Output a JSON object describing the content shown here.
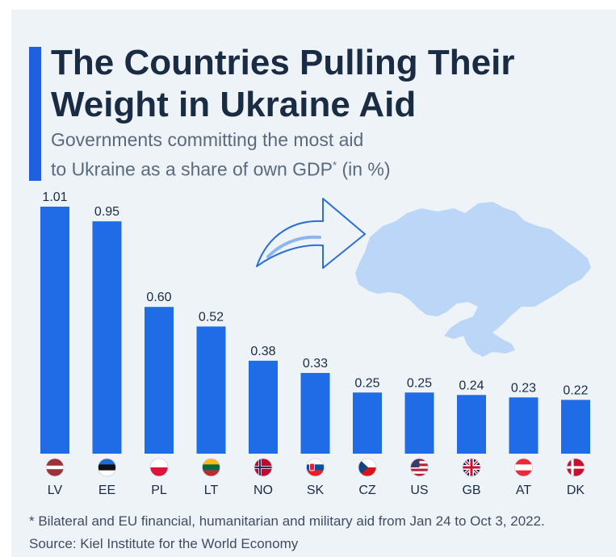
{
  "header": {
    "title_line1": "The Countries Pulling Their",
    "title_line2": "Weight in Ukraine Aid",
    "subtitle_line1": "Governments committing the most aid",
    "subtitle_line2_pre": "to Ukraine as a share of own GDP",
    "subtitle_sup": "*",
    "subtitle_line2_post": " (in %)"
  },
  "footer": {
    "footnote": "* Bilateral and EU financial, humanitarian and military aid from Jan 24 to Oct 3, 2022.",
    "source": "Source: Kiel Institute for the World Economy"
  },
  "colors": {
    "bar": "#1f6ce6",
    "accent": "#1f5fe0",
    "map": "#bcd6f7",
    "arrow": "#2a6fd6",
    "label": "#1a2b44"
  },
  "chart_data": {
    "type": "bar",
    "categories": [
      "LV",
      "EE",
      "PL",
      "LT",
      "NO",
      "SK",
      "CZ",
      "US",
      "GB",
      "AT",
      "DK"
    ],
    "values": [
      1.01,
      0.95,
      0.6,
      0.52,
      0.38,
      0.33,
      0.25,
      0.25,
      0.24,
      0.23,
      0.22
    ],
    "value_labels": [
      "1.01",
      "0.95",
      "0.60",
      "0.52",
      "0.38",
      "0.33",
      "0.25",
      "0.25",
      "0.24",
      "0.23",
      "0.22"
    ],
    "flag_icons": [
      "latvia-flag-icon",
      "estonia-flag-icon",
      "poland-flag-icon",
      "lithuania-flag-icon",
      "norway-flag-icon",
      "slovakia-flag-icon",
      "czechia-flag-icon",
      "usa-flag-icon",
      "uk-flag-icon",
      "austria-flag-icon",
      "denmark-flag-icon"
    ],
    "ylim": [
      0,
      1.01
    ],
    "grid": false,
    "legend": "none"
  }
}
